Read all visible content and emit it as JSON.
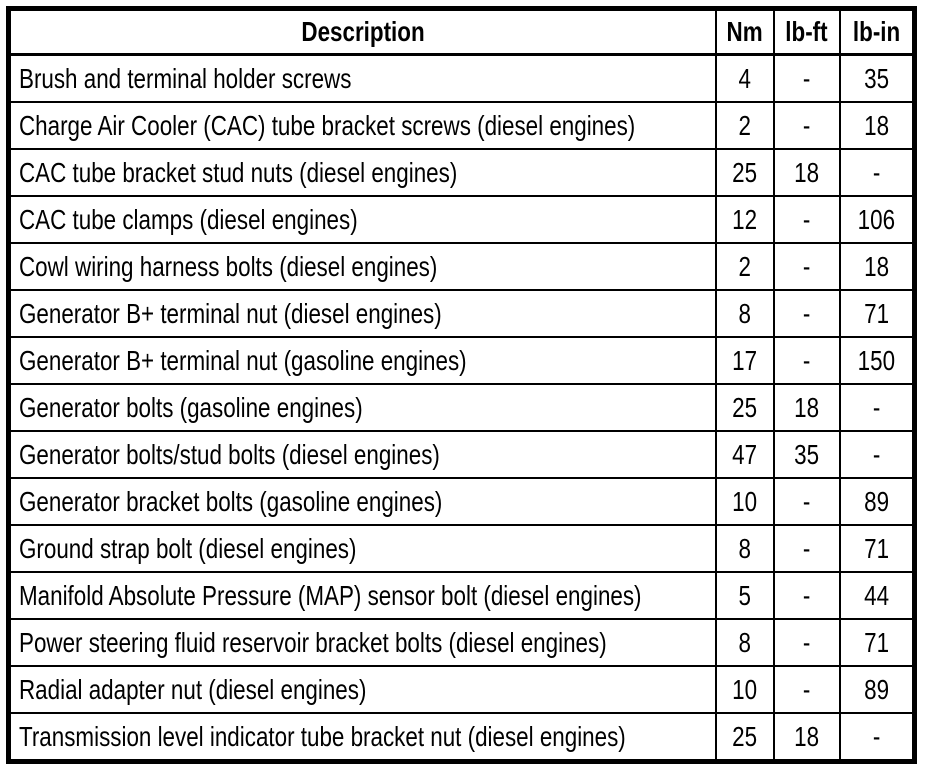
{
  "colors": {
    "background": "#ffffff",
    "border": "#000000",
    "text": "#000000"
  },
  "table": {
    "headers": {
      "description": "Description",
      "nm": "Nm",
      "lb_ft": "lb-ft",
      "lb_in": "lb-in"
    },
    "rows": [
      {
        "description": "Brush and terminal holder screws",
        "nm": "4",
        "lb_ft": "-",
        "lb_in": "35"
      },
      {
        "description": "Charge Air Cooler (CAC) tube bracket screws (diesel engines)",
        "nm": "2",
        "lb_ft": "-",
        "lb_in": "18"
      },
      {
        "description": "CAC tube bracket stud nuts (diesel engines)",
        "nm": "25",
        "lb_ft": "18",
        "lb_in": "-"
      },
      {
        "description": "CAC tube clamps (diesel engines)",
        "nm": "12",
        "lb_ft": "-",
        "lb_in": "106"
      },
      {
        "description": "Cowl wiring harness bolts (diesel engines)",
        "nm": "2",
        "lb_ft": "-",
        "lb_in": "18"
      },
      {
        "description": "Generator B+ terminal nut (diesel engines)",
        "nm": "8",
        "lb_ft": "-",
        "lb_in": "71"
      },
      {
        "description": "Generator B+ terminal nut (gasoline engines)",
        "nm": "17",
        "lb_ft": "-",
        "lb_in": "150"
      },
      {
        "description": "Generator bolts (gasoline engines)",
        "nm": "25",
        "lb_ft": "18",
        "lb_in": "-"
      },
      {
        "description": "Generator bolts/stud bolts (diesel engines)",
        "nm": "47",
        "lb_ft": "35",
        "lb_in": "-"
      },
      {
        "description": "Generator bracket bolts (gasoline engines)",
        "nm": "10",
        "lb_ft": "-",
        "lb_in": "89"
      },
      {
        "description": "Ground strap bolt (diesel engines)",
        "nm": "8",
        "lb_ft": "-",
        "lb_in": "71"
      },
      {
        "description": "Manifold Absolute Pressure (MAP) sensor bolt (diesel engines)",
        "nm": "5",
        "lb_ft": "-",
        "lb_in": "44"
      },
      {
        "description": "Power steering fluid reservoir bracket bolts (diesel engines)",
        "nm": "8",
        "lb_ft": "-",
        "lb_in": "71"
      },
      {
        "description": "Radial adapter nut (diesel engines)",
        "nm": "10",
        "lb_ft": "-",
        "lb_in": "89"
      },
      {
        "description": "Transmission level indicator tube bracket nut (diesel engines)",
        "nm": "25",
        "lb_ft": "18",
        "lb_in": "-"
      }
    ]
  }
}
